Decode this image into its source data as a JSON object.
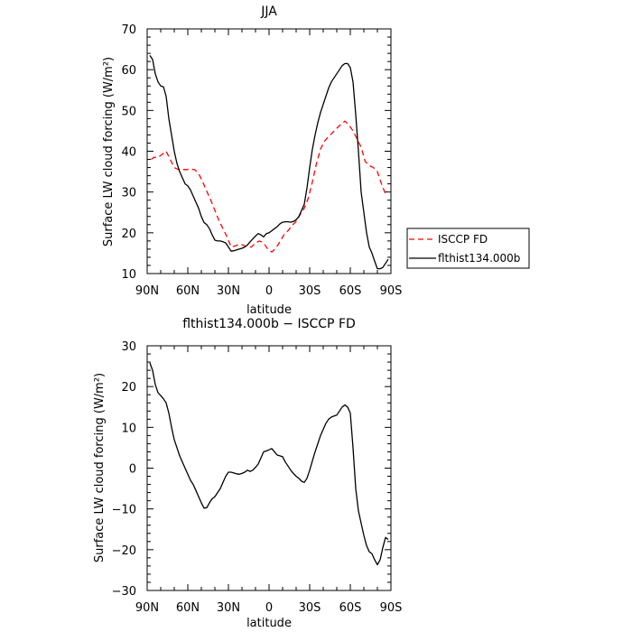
{
  "chart_data": [
    {
      "type": "line",
      "title": "JJA",
      "xlabel": "latitude",
      "ylabel": "Surface LW cloud forcing (W/m²)",
      "xlim": [
        90,
        -90
      ],
      "ylim": [
        10,
        70
      ],
      "x_ticks": [
        90,
        60,
        30,
        0,
        -30,
        -60,
        -90
      ],
      "x_tick_labels": [
        "90N",
        "60N",
        "30N",
        "0",
        "30S",
        "60S",
        "90S"
      ],
      "y_ticks": [
        10,
        20,
        30,
        40,
        50,
        60,
        70
      ],
      "y_tick_labels": [
        "10",
        "20",
        "30",
        "40",
        "50",
        "60",
        "70"
      ],
      "grid": false,
      "legend_position": "outside-right",
      "series": [
        {
          "name": "ISCCP FD",
          "color": "#ff0000",
          "dash": "dashed",
          "x": [
            87,
            85,
            82,
            79,
            76,
            73,
            70,
            67,
            64,
            61,
            58,
            55,
            52,
            49,
            46,
            43,
            40,
            37,
            34,
            31,
            28,
            25,
            22,
            19,
            16,
            13,
            10,
            7,
            4,
            1,
            -2,
            -5,
            -8,
            -11,
            -14,
            -17,
            -20,
            -23,
            -26,
            -29,
            -32,
            -35,
            -38,
            -41,
            -44,
            -47,
            -50,
            -53,
            -56,
            -59,
            -62,
            -65,
            -68,
            -71,
            -74,
            -77,
            -80,
            -83,
            -86,
            -87
          ],
          "y": [
            38,
            38.5,
            38.5,
            39.2,
            40.0,
            38.0,
            36.0,
            35.5,
            35.5,
            35.5,
            35.6,
            35.5,
            34.5,
            32.5,
            30.2,
            28.0,
            25.5,
            23.0,
            21.0,
            19.0,
            16.5,
            16.8,
            17.2,
            17.0,
            16.5,
            16.5,
            17.5,
            18.0,
            17.5,
            16.0,
            15.3,
            16.2,
            17.8,
            19.5,
            20.5,
            21.8,
            22.8,
            24.5,
            26.0,
            28.5,
            32.5,
            37.0,
            40.5,
            42.5,
            43.6,
            44.6,
            45.6,
            46.6,
            47.4,
            46.4,
            45.0,
            43.0,
            41.0,
            37.5,
            36.5,
            36.0,
            35.0,
            32.0,
            29.5,
            30.0
          ]
        },
        {
          "name": "flthist134.000b",
          "color": "#000000",
          "dash": "solid",
          "x": [
            88,
            86,
            84,
            82,
            80,
            78,
            76,
            74,
            72,
            70,
            68,
            66,
            64,
            62,
            60,
            58,
            56,
            54,
            52,
            50,
            48,
            46,
            44,
            42,
            40,
            38,
            36,
            34,
            32,
            30,
            28,
            26,
            24,
            22,
            20,
            18,
            16,
            14,
            12,
            10,
            8,
            6,
            4,
            2,
            0,
            -2,
            -4,
            -6,
            -8,
            -10,
            -12,
            -14,
            -16,
            -18,
            -20,
            -22,
            -24,
            -26,
            -28,
            -30,
            -32,
            -34,
            -36,
            -38,
            -40,
            -42,
            -44,
            -46,
            -48,
            -50,
            -52,
            -54,
            -56,
            -58,
            -60,
            -62,
            -64,
            -66,
            -68,
            -70,
            -72,
            -74,
            -76,
            -78,
            -80,
            -82,
            -84,
            -86,
            -88
          ],
          "y": [
            63.5,
            62.5,
            59.0,
            57.0,
            56.0,
            55.8,
            53.5,
            48.0,
            44.0,
            40.0,
            37.0,
            35.0,
            33.5,
            32.0,
            31.5,
            30.5,
            29.0,
            27.5,
            26.0,
            24.0,
            22.5,
            22.0,
            21.0,
            19.5,
            18.2,
            18.0,
            18.0,
            17.8,
            17.5,
            16.5,
            15.5,
            15.6,
            15.8,
            16.0,
            16.2,
            16.5,
            17.0,
            17.8,
            18.5,
            19.2,
            19.8,
            19.5,
            19.0,
            19.8,
            20.0,
            20.5,
            21.0,
            21.5,
            22.2,
            22.6,
            22.7,
            22.7,
            22.6,
            22.8,
            23.2,
            24.0,
            25.5,
            27.0,
            31.0,
            36.0,
            40.5,
            44.0,
            47.0,
            49.5,
            51.5,
            53.5,
            55.5,
            57.0,
            58.0,
            59.0,
            60.0,
            61.0,
            61.5,
            61.5,
            60.5,
            57.0,
            49.0,
            40.0,
            30.0,
            25.0,
            20.0,
            16.5,
            15.0,
            13.0,
            11.2,
            11.2,
            11.5,
            12.5,
            13.5
          ]
        }
      ]
    },
    {
      "type": "line",
      "title": "flthist134.000b − ISCCP FD",
      "xlabel": "latitude",
      "ylabel": "Surface LW cloud forcing (W/m²)",
      "xlim": [
        90,
        -90
      ],
      "ylim": [
        -30,
        30
      ],
      "x_ticks": [
        90,
        60,
        30,
        0,
        -30,
        -60,
        -90
      ],
      "x_tick_labels": [
        "90N",
        "60N",
        "30N",
        "0",
        "30S",
        "60S",
        "90S"
      ],
      "y_ticks": [
        -30,
        -20,
        -10,
        0,
        10,
        20,
        30
      ],
      "y_tick_labels": [
        "−30",
        "−20",
        "−10",
        "0",
        "10",
        "20",
        "30"
      ],
      "grid": false,
      "series": [
        {
          "color": "#000000",
          "dash": "solid",
          "x": [
            88,
            86,
            84,
            82,
            80,
            78,
            76,
            74,
            72,
            70,
            68,
            66,
            64,
            62,
            60,
            58,
            56,
            54,
            52,
            50,
            48,
            46,
            44,
            42,
            40,
            38,
            36,
            34,
            32,
            30,
            28,
            26,
            24,
            22,
            20,
            18,
            16,
            14,
            12,
            10,
            8,
            6,
            4,
            2,
            0,
            -2,
            -4,
            -6,
            -8,
            -10,
            -12,
            -14,
            -16,
            -18,
            -20,
            -22,
            -24,
            -26,
            -28,
            -30,
            -32,
            -34,
            -36,
            -38,
            -40,
            -42,
            -44,
            -46,
            -48,
            -50,
            -52,
            -54,
            -56,
            -58,
            -60,
            -62,
            -64,
            -66,
            -68,
            -70,
            -72,
            -74,
            -76,
            -78,
            -80,
            -82,
            -84,
            -86,
            -88
          ],
          "y": [
            25.8,
            24.0,
            20.5,
            18.5,
            17.8,
            17.0,
            16.0,
            13.5,
            10.0,
            7.0,
            5.0,
            3.0,
            1.5,
            0.0,
            -1.5,
            -3.0,
            -4.0,
            -5.5,
            -7.0,
            -8.5,
            -9.8,
            -9.7,
            -8.5,
            -7.5,
            -7.0,
            -6.0,
            -5.0,
            -3.5,
            -2.0,
            -1.0,
            -1.0,
            -1.2,
            -1.4,
            -1.5,
            -1.3,
            -1.0,
            -0.5,
            -0.8,
            -0.5,
            0.2,
            1.0,
            2.5,
            4.0,
            4.2,
            4.5,
            4.8,
            4.0,
            3.2,
            3.0,
            2.8,
            1.5,
            0.5,
            -0.5,
            -1.3,
            -2.0,
            -2.5,
            -3.2,
            -3.5,
            -2.5,
            -0.5,
            1.8,
            4.0,
            6.0,
            8.0,
            9.5,
            11.0,
            12.0,
            12.5,
            12.8,
            13.0,
            14.0,
            15.0,
            15.5,
            15.0,
            13.5,
            5.0,
            -5.0,
            -10.5,
            -13.5,
            -16.5,
            -19.0,
            -20.5,
            -21.0,
            -22.5,
            -23.7,
            -22.5,
            -19.5,
            -17.0,
            -17.5
          ]
        }
      ]
    }
  ]
}
